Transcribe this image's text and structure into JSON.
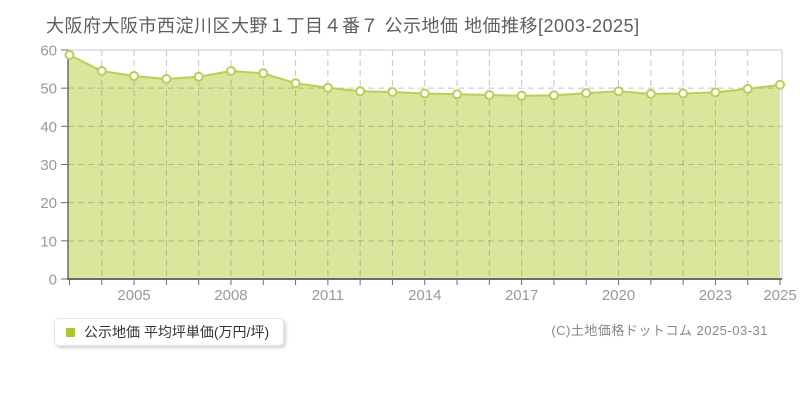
{
  "header": {
    "title": "大阪府大阪市西淀川区大野１丁目４番７ 公示地価 地価推移[2003-2025]"
  },
  "legend": {
    "label": "公示地価 平均坪単価(万円/坪)",
    "marker_color": "#a6c832"
  },
  "footer": {
    "copyright": "(C)土地価格ドットコム 2025-03-31"
  },
  "colors": {
    "line": "#b8cf58",
    "fill": "#d8e79c",
    "marker_fill": "#ffffff",
    "grid": "#808080",
    "axis_dark": "#6b6b6b",
    "border_light": "#cccccc",
    "tick_label": "#999999",
    "title_text": "#5e5e5e"
  },
  "chart_data": {
    "type": "area",
    "x": [
      2003,
      2004,
      2005,
      2006,
      2007,
      2008,
      2009,
      2010,
      2011,
      2012,
      2013,
      2014,
      2015,
      2016,
      2017,
      2018,
      2019,
      2020,
      2021,
      2022,
      2023,
      2024,
      2025
    ],
    "series": [
      {
        "name": "公示地価 平均坪単価(万円/坪)",
        "values": [
          58.7,
          54.5,
          53.2,
          52.4,
          53.0,
          54.5,
          53.9,
          51.3,
          50.1,
          49.2,
          49.0,
          48.6,
          48.4,
          48.2,
          48.0,
          48.1,
          48.7,
          49.2,
          48.5,
          48.6,
          48.9,
          49.8,
          50.9
        ]
      }
    ],
    "title": "大阪府大阪市西淀川区大野１丁目４番７ 公示地価 地価推移[2003-2025]",
    "xlabel": "",
    "ylabel": "",
    "ylim": [
      0,
      60
    ],
    "yticks": [
      0,
      10,
      20,
      30,
      40,
      50,
      60
    ],
    "xtick_labels": [
      2005,
      2008,
      2011,
      2014,
      2017,
      2020,
      2023,
      2025
    ],
    "grid": true,
    "legend_position": "bottom-left",
    "marker": "circle"
  }
}
